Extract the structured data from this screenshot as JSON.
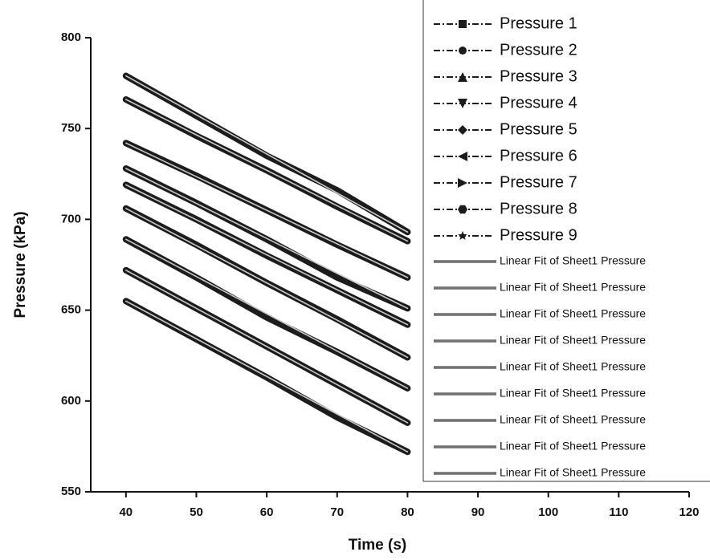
{
  "chart_data": {
    "type": "line",
    "x_label": "Time (s)",
    "y_label": "Pressure (kPa)",
    "x": [
      40,
      50,
      60,
      70,
      80
    ],
    "xlim": [
      35,
      120
    ],
    "xticks": [
      40,
      50,
      60,
      70,
      80,
      90,
      100,
      110,
      120
    ],
    "ylim": [
      550,
      800
    ],
    "yticks": [
      550,
      600,
      650,
      700,
      750,
      800
    ],
    "series": [
      {
        "name": "Pressure 1",
        "color": "#1c1c1c",
        "marker": "square",
        "values": [
          779,
          757,
          735,
          716,
          693
        ]
      },
      {
        "name": "Pressure 2",
        "color": "#1c1c1c",
        "marker": "circle",
        "values": [
          766,
          746,
          727,
          707,
          688
        ]
      },
      {
        "name": "Pressure 3",
        "color": "#1c1c1c",
        "marker": "triangle-up",
        "values": [
          742,
          724,
          705,
          686,
          668
        ]
      },
      {
        "name": "Pressure 4",
        "color": "#1c1c1c",
        "marker": "triangle-down",
        "values": [
          728,
          709,
          689,
          668,
          651
        ]
      },
      {
        "name": "Pressure 5",
        "color": "#1c1c1c",
        "marker": "diamond",
        "values": [
          719,
          700,
          680,
          661,
          642
        ]
      },
      {
        "name": "Pressure 6",
        "color": "#1c1c1c",
        "marker": "triangle-left",
        "values": [
          706,
          686,
          665,
          645,
          624
        ]
      },
      {
        "name": "Pressure 7",
        "color": "#1c1c1c",
        "marker": "triangle-right",
        "values": [
          689,
          668,
          646,
          627,
          607
        ]
      },
      {
        "name": "Pressure 8",
        "color": "#1c1c1c",
        "marker": "hexagon",
        "values": [
          672,
          651,
          630,
          609,
          588
        ]
      },
      {
        "name": "Pressure 9",
        "color": "#1c1c1c",
        "marker": "star",
        "values": [
          655,
          634,
          613,
          591,
          572
        ]
      },
      {
        "name": "Linear Fit of Sheet1 Pressure",
        "color": "#c8c8c8",
        "values": [
          779,
          757.5,
          736,
          714.5,
          693
        ]
      },
      {
        "name": "Linear Fit of Sheet1 Pressure",
        "color": "#c8c8c8",
        "values": [
          766,
          746.5,
          727,
          707.5,
          688
        ]
      },
      {
        "name": "Linear Fit of Sheet1 Pressure",
        "color": "#c8c8c8",
        "values": [
          742,
          723.5,
          705,
          686.5,
          668
        ]
      },
      {
        "name": "Linear Fit of Sheet1 Pressure",
        "color": "#c8c8c8",
        "values": [
          728,
          708.75,
          689.5,
          670.25,
          651
        ]
      },
      {
        "name": "Linear Fit of Sheet1 Pressure",
        "color": "#c8c8c8",
        "values": [
          719,
          699.75,
          680.5,
          661.25,
          642
        ]
      },
      {
        "name": "Linear Fit of Sheet1 Pressure",
        "color": "#c8c8c8",
        "values": [
          706,
          685.5,
          665,
          644.5,
          624
        ]
      },
      {
        "name": "Linear Fit of Sheet1 Pressure",
        "color": "#c8c8c8",
        "values": [
          689,
          668.5,
          648,
          627.5,
          607
        ]
      },
      {
        "name": "Linear Fit of Sheet1 Pressure",
        "color": "#c8c8c8",
        "values": [
          672,
          651,
          630,
          609,
          588
        ]
      },
      {
        "name": "Linear Fit of Sheet1 Pressure",
        "color": "#c8c8c8",
        "values": [
          655,
          634.25,
          613.5,
          592.75,
          572
        ]
      }
    ]
  }
}
